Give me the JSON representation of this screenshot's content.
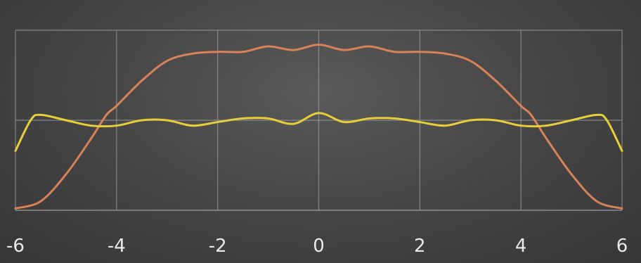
{
  "chart_data": {
    "type": "line",
    "title": "",
    "xlabel": "",
    "ylabel": "",
    "xlim": [
      -6,
      6
    ],
    "ylim": [
      0,
      1
    ],
    "grid": true,
    "legend": "none",
    "x_ticks": [
      -6,
      -4,
      -2,
      0,
      2,
      4,
      6
    ],
    "x_tick_labels": [
      "-6",
      "-4",
      "-2",
      "0",
      "2",
      "4",
      "6"
    ],
    "series": [
      {
        "color": "#d9825a",
        "points": [
          [
            -6,
            0.01
          ],
          [
            -5.5,
            0.05
          ],
          [
            -5,
            0.2
          ],
          [
            -4.5,
            0.4
          ],
          [
            -4.2,
            0.53
          ],
          [
            -4,
            0.58
          ],
          [
            -3.5,
            0.72
          ],
          [
            -3,
            0.83
          ],
          [
            -2.5,
            0.87
          ],
          [
            -2,
            0.88
          ],
          [
            -1.5,
            0.88
          ],
          [
            -1,
            0.91
          ],
          [
            -0.5,
            0.89
          ],
          [
            0,
            0.92
          ],
          [
            0.5,
            0.89
          ],
          [
            1,
            0.91
          ],
          [
            1.5,
            0.88
          ],
          [
            2,
            0.88
          ],
          [
            2.5,
            0.87
          ],
          [
            3,
            0.83
          ],
          [
            3.5,
            0.72
          ],
          [
            4,
            0.58
          ],
          [
            4.2,
            0.53
          ],
          [
            4.5,
            0.4
          ],
          [
            5,
            0.2
          ],
          [
            5.5,
            0.05
          ],
          [
            6,
            0.01
          ]
        ]
      },
      {
        "color": "#e6cf3a",
        "points": [
          [
            -6,
            0.33
          ],
          [
            -5.7,
            0.5
          ],
          [
            -5.5,
            0.53
          ],
          [
            -5,
            0.5
          ],
          [
            -4.5,
            0.47
          ],
          [
            -4,
            0.47
          ],
          [
            -3.5,
            0.5
          ],
          [
            -3,
            0.5
          ],
          [
            -2.5,
            0.47
          ],
          [
            -2,
            0.49
          ],
          [
            -1.5,
            0.51
          ],
          [
            -1,
            0.51
          ],
          [
            -0.5,
            0.48
          ],
          [
            0,
            0.54
          ],
          [
            0.5,
            0.49
          ],
          [
            1,
            0.51
          ],
          [
            1.5,
            0.51
          ],
          [
            2,
            0.49
          ],
          [
            2.5,
            0.47
          ],
          [
            3,
            0.5
          ],
          [
            3.5,
            0.5
          ],
          [
            4,
            0.47
          ],
          [
            4.5,
            0.47
          ],
          [
            5,
            0.5
          ],
          [
            5.5,
            0.53
          ],
          [
            5.7,
            0.5
          ],
          [
            6,
            0.33
          ]
        ]
      }
    ]
  }
}
